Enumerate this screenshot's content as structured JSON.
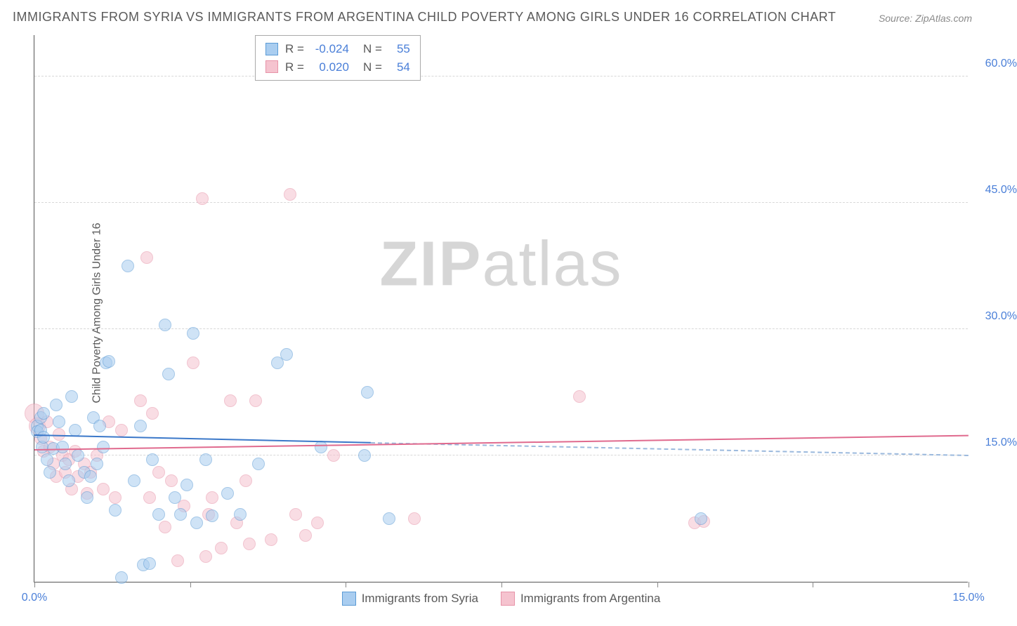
{
  "title": "IMMIGRANTS FROM SYRIA VS IMMIGRANTS FROM ARGENTINA CHILD POVERTY AMONG GIRLS UNDER 16 CORRELATION CHART",
  "source": "Source: ZipAtlas.com",
  "watermark_a": "ZIP",
  "watermark_b": "atlas",
  "y_axis_label": "Child Poverty Among Girls Under 16",
  "chart": {
    "type": "scatter",
    "xlim": [
      0,
      15
    ],
    "ylim": [
      0,
      65
    ],
    "x_ticks": [
      0,
      2.5,
      5,
      7.5,
      10,
      12.5,
      15
    ],
    "x_tick_labels": {
      "0": "0.0%",
      "15": "15.0%"
    },
    "y_ticks": [
      15,
      30,
      45,
      60
    ],
    "y_tick_labels": {
      "15": "15.0%",
      "30": "30.0%",
      "45": "45.0%",
      "60": "60.0%"
    },
    "gridline_color": "#d8d8d8",
    "axis_color": "#555555",
    "background_color": "#ffffff",
    "tick_label_color": "#4a7fd8",
    "axis_label_color": "#5a5a5a",
    "title_color": "#5a5a5a",
    "title_fontsize": 18,
    "label_fontsize": 16,
    "series": {
      "syria": {
        "label": "Immigrants from Syria",
        "fill": "#a9cdf0",
        "stroke": "#5b9bd5",
        "fill_opacity": 0.55,
        "marker_radius": 9,
        "trend_solid_color": "#3b78c9",
        "trend_dashed_color": "#9bb9dd",
        "trend_start": {
          "x": 0,
          "y": 17.3
        },
        "trend_mid": {
          "x": 5.4,
          "y": 16.4
        },
        "trend_end": {
          "x": 15,
          "y": 14.9
        },
        "R": "-0.024",
        "N": "55",
        "points": [
          {
            "x": 0.05,
            "y": 18.5
          },
          {
            "x": 0.05,
            "y": 17.8
          },
          {
            "x": 0.1,
            "y": 19.5
          },
          {
            "x": 0.1,
            "y": 18.0
          },
          {
            "x": 0.12,
            "y": 16.0
          },
          {
            "x": 0.15,
            "y": 20.0
          },
          {
            "x": 0.15,
            "y": 17.2
          },
          {
            "x": 0.2,
            "y": 14.5
          },
          {
            "x": 0.25,
            "y": 13.0
          },
          {
            "x": 0.3,
            "y": 15.8
          },
          {
            "x": 0.35,
            "y": 21.0
          },
          {
            "x": 0.4,
            "y": 19.0
          },
          {
            "x": 0.45,
            "y": 16.0
          },
          {
            "x": 0.5,
            "y": 14.0
          },
          {
            "x": 0.55,
            "y": 12.0
          },
          {
            "x": 0.6,
            "y": 22.0
          },
          {
            "x": 0.65,
            "y": 18.0
          },
          {
            "x": 0.7,
            "y": 15.0
          },
          {
            "x": 0.8,
            "y": 13.0
          },
          {
            "x": 0.85,
            "y": 10.0
          },
          {
            "x": 0.9,
            "y": 12.5
          },
          {
            "x": 0.95,
            "y": 19.5
          },
          {
            "x": 1.0,
            "y": 14.0
          },
          {
            "x": 1.05,
            "y": 18.5
          },
          {
            "x": 1.1,
            "y": 16.0
          },
          {
            "x": 1.15,
            "y": 26.0
          },
          {
            "x": 1.2,
            "y": 26.2
          },
          {
            "x": 1.3,
            "y": 8.5
          },
          {
            "x": 1.4,
            "y": 0.5
          },
          {
            "x": 1.5,
            "y": 37.5
          },
          {
            "x": 1.6,
            "y": 12.0
          },
          {
            "x": 1.7,
            "y": 18.5
          },
          {
            "x": 1.75,
            "y": 2.0
          },
          {
            "x": 1.85,
            "y": 2.2
          },
          {
            "x": 1.9,
            "y": 14.5
          },
          {
            "x": 2.0,
            "y": 8.0
          },
          {
            "x": 2.1,
            "y": 30.5
          },
          {
            "x": 2.15,
            "y": 24.7
          },
          {
            "x": 2.25,
            "y": 10.0
          },
          {
            "x": 2.35,
            "y": 8.0
          },
          {
            "x": 2.45,
            "y": 11.5
          },
          {
            "x": 2.55,
            "y": 29.5
          },
          {
            "x": 2.6,
            "y": 7.0
          },
          {
            "x": 2.75,
            "y": 14.5
          },
          {
            "x": 2.85,
            "y": 7.8
          },
          {
            "x": 3.1,
            "y": 10.5
          },
          {
            "x": 3.3,
            "y": 8.0
          },
          {
            "x": 3.6,
            "y": 14.0
          },
          {
            "x": 3.9,
            "y": 26.0
          },
          {
            "x": 4.05,
            "y": 27.0
          },
          {
            "x": 4.6,
            "y": 16.0
          },
          {
            "x": 5.3,
            "y": 15.0
          },
          {
            "x": 5.35,
            "y": 22.5
          },
          {
            "x": 5.7,
            "y": 7.5
          },
          {
            "x": 10.7,
            "y": 7.5
          }
        ]
      },
      "argentina": {
        "label": "Immigrants from Argentina",
        "fill": "#f5c3cf",
        "stroke": "#e793a8",
        "fill_opacity": 0.55,
        "marker_radius": 9,
        "trend_solid_color": "#e06a8e",
        "trend_start": {
          "x": 0,
          "y": 15.6
        },
        "trend_end": {
          "x": 15,
          "y": 17.3
        },
        "R": "0.020",
        "N": "54",
        "points": [
          {
            "x": 0.0,
            "y": 20.0,
            "r": 14
          },
          {
            "x": 0.05,
            "y": 18.5,
            "r": 12
          },
          {
            "x": 0.1,
            "y": 17.0
          },
          {
            "x": 0.15,
            "y": 15.5
          },
          {
            "x": 0.2,
            "y": 19.0
          },
          {
            "x": 0.25,
            "y": 16.0
          },
          {
            "x": 0.3,
            "y": 14.0
          },
          {
            "x": 0.35,
            "y": 12.5
          },
          {
            "x": 0.4,
            "y": 17.5
          },
          {
            "x": 0.45,
            "y": 15.0
          },
          {
            "x": 0.5,
            "y": 13.0
          },
          {
            "x": 0.55,
            "y": 14.5
          },
          {
            "x": 0.6,
            "y": 11.0
          },
          {
            "x": 0.65,
            "y": 15.5
          },
          {
            "x": 0.7,
            "y": 12.5
          },
          {
            "x": 0.8,
            "y": 14.0
          },
          {
            "x": 0.85,
            "y": 10.5
          },
          {
            "x": 0.9,
            "y": 13.0
          },
          {
            "x": 1.0,
            "y": 15.0
          },
          {
            "x": 1.1,
            "y": 11.0
          },
          {
            "x": 1.2,
            "y": 19.0
          },
          {
            "x": 1.3,
            "y": 10.0
          },
          {
            "x": 1.4,
            "y": 18.0
          },
          {
            "x": 1.7,
            "y": 21.5
          },
          {
            "x": 1.8,
            "y": 38.5
          },
          {
            "x": 1.85,
            "y": 10.0
          },
          {
            "x": 1.9,
            "y": 20.0
          },
          {
            "x": 2.0,
            "y": 13.0
          },
          {
            "x": 2.1,
            "y": 6.5
          },
          {
            "x": 2.2,
            "y": 12.0
          },
          {
            "x": 2.3,
            "y": 2.5
          },
          {
            "x": 2.4,
            "y": 9.0
          },
          {
            "x": 2.55,
            "y": 26.0
          },
          {
            "x": 2.7,
            "y": 45.5
          },
          {
            "x": 2.75,
            "y": 3.0
          },
          {
            "x": 2.8,
            "y": 8.0
          },
          {
            "x": 2.85,
            "y": 10.0
          },
          {
            "x": 3.0,
            "y": 4.0
          },
          {
            "x": 3.15,
            "y": 21.5
          },
          {
            "x": 3.25,
            "y": 7.0
          },
          {
            "x": 3.4,
            "y": 12.0
          },
          {
            "x": 3.45,
            "y": 4.5
          },
          {
            "x": 3.55,
            "y": 21.5
          },
          {
            "x": 3.8,
            "y": 5.0
          },
          {
            "x": 4.1,
            "y": 46.0
          },
          {
            "x": 4.2,
            "y": 8.0
          },
          {
            "x": 4.35,
            "y": 5.5
          },
          {
            "x": 4.55,
            "y": 7.0
          },
          {
            "x": 4.8,
            "y": 15.0
          },
          {
            "x": 6.1,
            "y": 7.5
          },
          {
            "x": 8.75,
            "y": 22.0
          },
          {
            "x": 10.6,
            "y": 7.0
          },
          {
            "x": 10.75,
            "y": 7.2
          }
        ]
      }
    }
  },
  "legend_stats": {
    "R_label": "R =",
    "N_label": "N ="
  }
}
